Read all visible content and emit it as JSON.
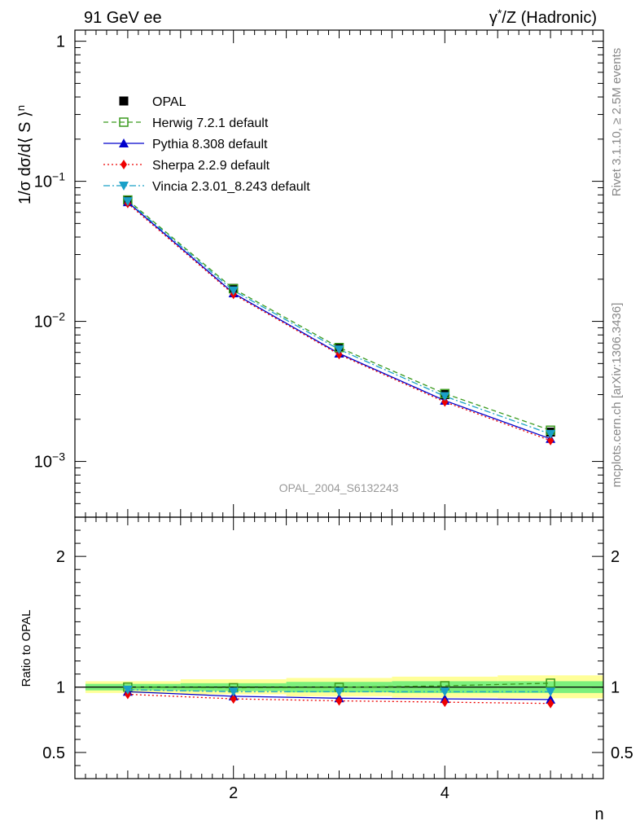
{
  "chart_data": [
    {
      "type": "line",
      "title_left": "91 GeV ee",
      "title_right_sup": "*",
      "title_right_rest": "/Z (Hadronic)",
      "ylabel": "1/σ dσ/d⟨ S ⟩",
      "ylabel_sup": "n",
      "yscale": "log",
      "xlim": [
        0.5,
        5.5
      ],
      "ylim": [
        0.0004,
        1.2
      ],
      "y_ticks": [
        {
          "value": 1,
          "mantissa": "1",
          "exponent": ""
        },
        {
          "value": 0.1,
          "mantissa": "10",
          "exponent": "−1"
        },
        {
          "value": 0.01,
          "mantissa": "10",
          "exponent": "−2"
        },
        {
          "value": 0.001,
          "mantissa": "10",
          "exponent": "−3"
        }
      ],
      "watermark": "OPAL_2004_S6132243",
      "legend_position": "top-left",
      "x": [
        1,
        2,
        3,
        4,
        5
      ],
      "series": [
        {
          "name": "OPAL",
          "color": "#000000",
          "marker": "filled-square",
          "line": "none",
          "values": [
            0.0735,
            0.0172,
            0.0065,
            0.003,
            0.00162
          ]
        },
        {
          "name": "Herwig 7.2.1 default",
          "color": "#3a9a1e",
          "marker": "open-square",
          "line": "dashed",
          "values": [
            0.0735,
            0.0171,
            0.0065,
            0.00305,
            0.00167
          ]
        },
        {
          "name": "Pythia 8.308 default",
          "color": "#0000cc",
          "marker": "triangle-up",
          "line": "solid",
          "values": [
            0.071,
            0.0159,
            0.0059,
            0.00272,
            0.00145
          ]
        },
        {
          "name": "Sherpa 2.2.9 default",
          "color": "#ee0000",
          "marker": "diamond",
          "line": "dotted",
          "values": [
            0.0695,
            0.0156,
            0.0058,
            0.00266,
            0.00141
          ]
        },
        {
          "name": "Vincia 2.3.01_8.243 default",
          "color": "#1aa0c8",
          "marker": "triangle-down",
          "line": "dash-dot",
          "values": [
            0.072,
            0.0166,
            0.0063,
            0.00292,
            0.00157
          ]
        }
      ]
    },
    {
      "type": "line",
      "xlabel": "n",
      "ylabel": "Ratio to OPAL",
      "xlim": [
        0.5,
        5.5
      ],
      "ylim": [
        0.3,
        2.3
      ],
      "x_ticks": [
        2,
        4
      ],
      "x_tick_labels": [
        "2",
        "4"
      ],
      "y_ticks": [
        0.5,
        1,
        2
      ],
      "y_tick_labels": [
        "0.5",
        "1",
        "2"
      ],
      "bands": {
        "bins": [
          [
            0.6,
            1.5
          ],
          [
            1.5,
            2.5
          ],
          [
            2.5,
            3.5
          ],
          [
            3.5,
            4.5
          ],
          [
            4.5,
            5.5
          ]
        ],
        "green_lo": [
          0.975,
          0.97,
          0.96,
          0.955,
          0.955
        ],
        "green_hi": [
          1.025,
          1.03,
          1.04,
          1.045,
          1.045
        ],
        "yellow_lo": [
          0.955,
          0.945,
          0.93,
          0.92,
          0.915
        ],
        "yellow_hi": [
          1.045,
          1.06,
          1.07,
          1.08,
          1.09
        ],
        "green_color": "#7cf07c",
        "yellow_color": "#ffff99"
      },
      "x": [
        1,
        2,
        3,
        4,
        5
      ],
      "series": [
        {
          "name": "Herwig 7.2.1 default",
          "color": "#3a9a1e",
          "marker": "open-square",
          "line": "dashed",
          "values": [
            1.0,
            0.995,
            0.998,
            1.01,
            1.03
          ]
        },
        {
          "name": "Pythia 8.308 default",
          "color": "#0000cc",
          "marker": "triangle-up",
          "line": "solid",
          "values": [
            0.965,
            0.93,
            0.915,
            0.91,
            0.905
          ]
        },
        {
          "name": "Sherpa 2.2.9 default",
          "color": "#ee0000",
          "marker": "diamond",
          "line": "dotted",
          "values": [
            0.945,
            0.91,
            0.895,
            0.885,
            0.875
          ]
        },
        {
          "name": "Vincia 2.3.01_8.243 default",
          "color": "#1aa0c8",
          "marker": "triangle-down",
          "line": "dash-dot",
          "values": [
            0.98,
            0.965,
            0.965,
            0.965,
            0.965
          ]
        }
      ]
    }
  ],
  "side_text": {
    "rivet": "Rivet 3.1.10, ≥ 2.5M events",
    "mcplots": "mcplots.cern.ch [arXiv:1306.3436]"
  }
}
